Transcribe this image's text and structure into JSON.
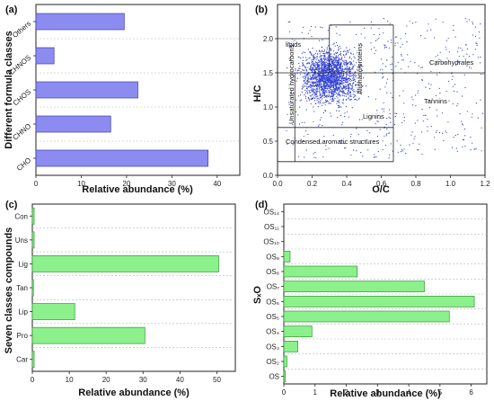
{
  "colors": {
    "bar_blue": "#8c8cf0",
    "bar_blue_edge": "#3c3cb4",
    "bar_green": "#8cf08c",
    "bar_green_edge": "#2f9a2f",
    "scatter": "#2f3fd0",
    "grid": "#b8b8b8"
  },
  "chart_data": [
    {
      "id": "a",
      "panel_label": "(a)",
      "type": "bar",
      "orientation": "horizontal",
      "categories": [
        "CHO",
        "CHNO",
        "CHOS",
        "CHNOS",
        "Others"
      ],
      "values": [
        38,
        16.5,
        22.5,
        4,
        19.5
      ],
      "xlabel": "Relative abundance (%)",
      "ylabel": "Different formula classes",
      "xlim": [
        0,
        45
      ],
      "xticks": [
        "0",
        "10",
        "20",
        "30",
        "40"
      ],
      "grid": true
    },
    {
      "id": "b",
      "panel_label": "(b)",
      "type": "scatter",
      "xlabel": "O/C",
      "ylabel": "H/C",
      "xlim": [
        0,
        1.2
      ],
      "ylim": [
        0,
        2.5
      ],
      "xticks": [
        "0.0",
        "0.2",
        "0.4",
        "0.6",
        "0.8",
        "1.0",
        "1.2"
      ],
      "yticks": [
        "0.0",
        "0.5",
        "1.0",
        "1.5",
        "2.0"
      ],
      "regions": [
        "lipids",
        "Aliphatic/proteins",
        "Carbohydrates",
        "Unsaturated hydrocarbons",
        "Lignins",
        "Tannins",
        "Condensed aromatic structures"
      ]
    },
    {
      "id": "c",
      "panel_label": "(c)",
      "type": "bar",
      "orientation": "horizontal",
      "categories": [
        "Car",
        "Pro",
        "Lip",
        "Tan",
        "Lig",
        "Uns",
        "Con"
      ],
      "values": [
        0.5,
        30.5,
        11.5,
        0.3,
        50.5,
        0.5,
        0.5
      ],
      "xlabel": "Relative abundance (%)",
      "ylabel": "Seven classes compounds",
      "xlim": [
        0,
        55
      ],
      "xticks": [
        "0",
        "10",
        "20",
        "30",
        "40",
        "50"
      ],
      "grid": true
    },
    {
      "id": "d",
      "panel_label": "(d)",
      "type": "bar",
      "orientation": "horizontal",
      "categories": [
        "OS",
        "OS₂",
        "OS₃",
        "OS₄",
        "OS₅",
        "OS₆",
        "OS₇",
        "OS₈",
        "OS₉",
        "OS₁₀",
        "OS₁₁",
        "OS₁₄"
      ],
      "values": [
        0.05,
        0.1,
        0.45,
        0.9,
        5.3,
        6.1,
        4.5,
        2.35,
        0.2,
        0,
        0,
        0
      ],
      "xlabel": "Relative abundance (%)",
      "ylabel": "SₓO",
      "xlim": [
        0,
        6.5
      ],
      "xticks": [
        "0",
        "1",
        "2",
        "3",
        "4",
        "5",
        "6"
      ],
      "grid": true
    }
  ]
}
